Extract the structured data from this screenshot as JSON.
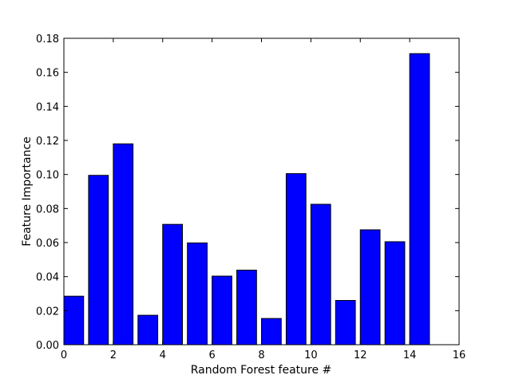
{
  "chart_data": {
    "type": "bar",
    "xlabel": "Random Forest feature #",
    "ylabel": "Feature Importance",
    "xlim": [
      0,
      16
    ],
    "ylim": [
      0,
      0.18
    ],
    "x_ticks": [
      "0",
      "2",
      "4",
      "6",
      "8",
      "10",
      "12",
      "14",
      "16"
    ],
    "y_ticks": [
      "0.00",
      "0.02",
      "0.04",
      "0.06",
      "0.08",
      "0.10",
      "0.12",
      "0.14",
      "0.16",
      "0.18"
    ],
    "bar_width": 0.8,
    "categories": [
      0,
      1,
      2,
      3,
      4,
      5,
      6,
      7,
      8,
      9,
      10,
      11,
      12,
      13,
      14
    ],
    "values": [
      0.0285,
      0.0995,
      0.118,
      0.0173,
      0.0707,
      0.0598,
      0.0403,
      0.0438,
      0.0154,
      0.1005,
      0.0825,
      0.026,
      0.0675,
      0.0605,
      0.171
    ],
    "bar_color": "#0000ff",
    "grid": false
  }
}
